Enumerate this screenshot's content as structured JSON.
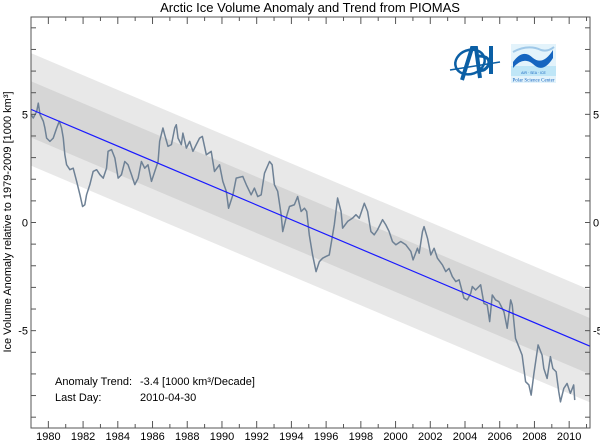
{
  "chart_data": {
    "type": "line",
    "title": "Arctic Ice Volume Anomaly and Trend from PIOMAS",
    "xlabel": "",
    "ylabel": "Ice Volume Anomaly relative to 1979-2009 [1000 km³]",
    "xlim": [
      1979,
      2011.2
    ],
    "ylim": [
      -9.5,
      9.5
    ],
    "grid": false,
    "x_tick_labels": [
      "1980",
      "1982",
      "1984",
      "1986",
      "1988",
      "1990",
      "1992",
      "1994",
      "1996",
      "1998",
      "2000",
      "2002",
      "2004",
      "2006",
      "2008",
      "2010"
    ],
    "y_tick_labels": [
      "-5",
      "0",
      "5"
    ],
    "trend": {
      "value_at_1979": 5.23,
      "slope_per_decade": -3.4,
      "color": "#1a1aff"
    },
    "bands": {
      "inner_halfwidth": 1.3,
      "outer_halfwidth": 2.6,
      "inner_color": "#d6d6d6",
      "outer_color": "#e8e8e8"
    },
    "series": [
      {
        "color": "#6e8195",
        "x": [
          1979.0,
          1979.13,
          1979.33,
          1979.42,
          1979.52,
          1979.71,
          1979.8,
          1979.9,
          1980.09,
          1980.28,
          1980.48,
          1980.63,
          1980.76,
          1980.86,
          1980.95,
          1981.05,
          1981.24,
          1981.43,
          1981.63,
          1981.82,
          1981.97,
          1982.1,
          1982.2,
          1982.39,
          1982.58,
          1982.78,
          1982.97,
          1983.16,
          1983.35,
          1983.44,
          1983.64,
          1983.83,
          1984.02,
          1984.21,
          1984.4,
          1984.59,
          1984.79,
          1984.98,
          1985.17,
          1985.36,
          1985.55,
          1985.74,
          1985.94,
          1986.13,
          1986.32,
          1986.41,
          1986.6,
          1986.7,
          1986.89,
          1987.09,
          1987.28,
          1987.37,
          1987.47,
          1987.66,
          1987.75,
          1987.95,
          1988.14,
          1988.33,
          1988.52,
          1988.71,
          1988.87,
          1989.1,
          1989.38,
          1989.57,
          1989.86,
          1990.05,
          1990.25,
          1990.38,
          1990.63,
          1990.82,
          1991.2,
          1991.4,
          1991.68,
          1991.87,
          1992.06,
          1992.26,
          1992.45,
          1992.74,
          1992.89,
          1993.02,
          1993.21,
          1993.41,
          1993.5,
          1993.69,
          1993.89,
          1994.17,
          1994.36,
          1994.56,
          1994.75,
          1994.88,
          1995.03,
          1995.22,
          1995.42,
          1995.61,
          1995.8,
          1995.99,
          1996.18,
          1996.47,
          1996.66,
          1996.86,
          1996.95,
          1997.24,
          1997.52,
          1997.72,
          1997.91,
          1998.2,
          1998.39,
          1998.58,
          1998.77,
          1998.96,
          1999.25,
          1999.44,
          1999.63,
          1999.82,
          2000.02,
          2000.3,
          2000.59,
          2000.88,
          2001.01,
          2001.26,
          2001.36,
          2001.55,
          2001.64,
          2001.84,
          2002.03,
          2002.22,
          2002.41,
          2002.7,
          2002.89,
          2003.08,
          2003.27,
          2003.47,
          2003.66,
          2003.94,
          2004.13,
          2004.33,
          2004.42,
          2004.61,
          2004.9,
          2005.09,
          2005.28,
          2005.42,
          2005.57,
          2005.76,
          2005.95,
          2006.24,
          2006.43,
          2006.63,
          2006.72,
          2006.91,
          2007.1,
          2007.29,
          2007.49,
          2007.68,
          2007.81,
          2007.97,
          2008.21,
          2008.44,
          2008.54,
          2008.73,
          2008.92,
          2009.06,
          2009.25,
          2009.4,
          2009.5,
          2009.69,
          2009.88,
          2010.07,
          2010.26,
          2010.32
        ],
        "y": [
          5.0,
          4.83,
          5.14,
          5.52,
          4.99,
          4.68,
          4.37,
          3.9,
          3.75,
          3.9,
          4.37,
          4.68,
          4.37,
          3.9,
          3.13,
          2.67,
          2.44,
          2.51,
          1.9,
          1.28,
          0.74,
          0.82,
          1.28,
          1.75,
          2.36,
          2.44,
          2.21,
          2.05,
          2.51,
          3.29,
          3.37,
          2.98,
          2.05,
          2.21,
          2.82,
          2.67,
          2.21,
          1.75,
          2.05,
          2.82,
          2.51,
          2.67,
          1.9,
          2.36,
          2.82,
          3.75,
          4.37,
          4.06,
          3.52,
          3.6,
          4.37,
          4.52,
          3.9,
          3.6,
          4.13,
          3.44,
          3.75,
          3.29,
          3.6,
          3.9,
          3.98,
          3.13,
          3.29,
          2.36,
          2.67,
          1.9,
          1.44,
          0.66,
          1.28,
          2.05,
          2.13,
          1.75,
          1.28,
          1.59,
          1.2,
          1.28,
          2.28,
          2.82,
          2.67,
          1.75,
          1.44,
          0.36,
          -0.42,
          0.2,
          0.74,
          0.82,
          1.2,
          0.51,
          0.66,
          0.51,
          -0.57,
          -1.5,
          -2.27,
          -1.81,
          -1.65,
          -1.57,
          -1.5,
          -0.11,
          1.13,
          0.51,
          -0.26,
          0.05,
          0.2,
          0.36,
          0.2,
          0.89,
          0.51,
          -0.42,
          -0.57,
          -0.34,
          0.13,
          -0.11,
          -0.42,
          -0.88,
          -1.03,
          -0.88,
          -1.03,
          -1.34,
          -1.73,
          -1.19,
          -1.42,
          -0.42,
          -0.19,
          -0.73,
          -1.5,
          -1.19,
          -1.65,
          -1.96,
          -2.27,
          -2.12,
          -2.5,
          -2.73,
          -2.65,
          -3.5,
          -3.58,
          -3.27,
          -2.96,
          -3.12,
          -2.88,
          -3.74,
          -3.81,
          -4.58,
          -3.35,
          -3.58,
          -3.66,
          -4.12,
          -4.89,
          -3.58,
          -3.81,
          -5.36,
          -5.74,
          -6.13,
          -7.36,
          -7.51,
          -7.98,
          -6.98,
          -5.66,
          -6.13,
          -6.75,
          -7.21,
          -6.2,
          -6.75,
          -6.9,
          -7.82,
          -8.29,
          -7.67,
          -7.44,
          -7.9,
          -7.51,
          -8.21
        ]
      }
    ],
    "annotations": {
      "trend_label": "Anomaly Trend:",
      "trend_value": "-3.4 [1000 km³/Decade]",
      "last_day_label": "Last Day:",
      "last_day_value": "2010-04-30"
    }
  },
  "logos": {
    "apl": {
      "text": "APL",
      "color": "#0b5fa5"
    },
    "psc": {
      "text_top": "AIR  ·  SEA  ·  ICE",
      "text_bottom": "Polar Science Center",
      "color": "#1565c0"
    }
  }
}
